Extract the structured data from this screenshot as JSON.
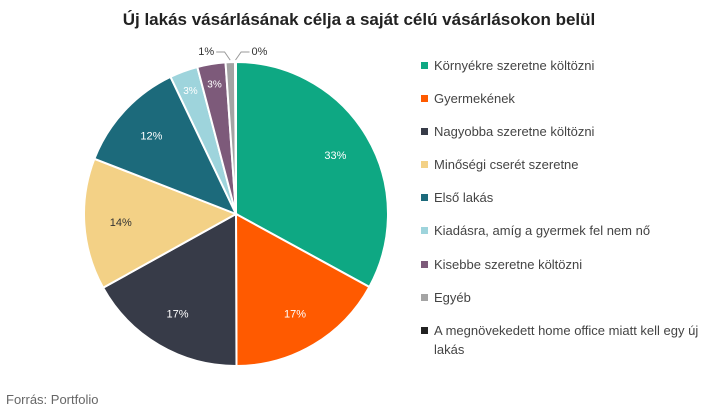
{
  "chart_data": {
    "type": "pie",
    "title": "Új lakás vásárlásának célja a saját célú vásárlásokon belül",
    "slices": [
      {
        "label": "Környékre szeretne költözni",
        "value": 33,
        "value_label": "33%",
        "color": "#0ea883"
      },
      {
        "label": "Gyermekének",
        "value": 17,
        "value_label": "17%",
        "color": "#ff5a00"
      },
      {
        "label": "Nagyobba szeretne költözni",
        "value": 17,
        "value_label": "17%",
        "color": "#373b48"
      },
      {
        "label": "Minőségi cserét szeretne",
        "value": 14,
        "value_label": "14%",
        "color": "#f3d186"
      },
      {
        "label": "Első lakás",
        "value": 12,
        "value_label": "12%",
        "color": "#1c6a7b"
      },
      {
        "label": "Kiadásra, amíg a gyermek fel nem nő",
        "value": 3,
        "value_label": "3%",
        "color": "#9ed4dc"
      },
      {
        "label": "Kisebbe szeretne költözni",
        "value": 3,
        "value_label": "3%",
        "color": "#7d5a7a"
      },
      {
        "label": "Egyéb",
        "value": 1,
        "value_label": "1%",
        "color": "#a4a4a4"
      },
      {
        "label": "A megnövekedett home office miatt kell egy új lakás",
        "value": 0.1,
        "value_label": "0%",
        "color": "#222222"
      }
    ],
    "legend_position": "right"
  },
  "footer": {
    "source": "Forrás: Portfolio"
  }
}
